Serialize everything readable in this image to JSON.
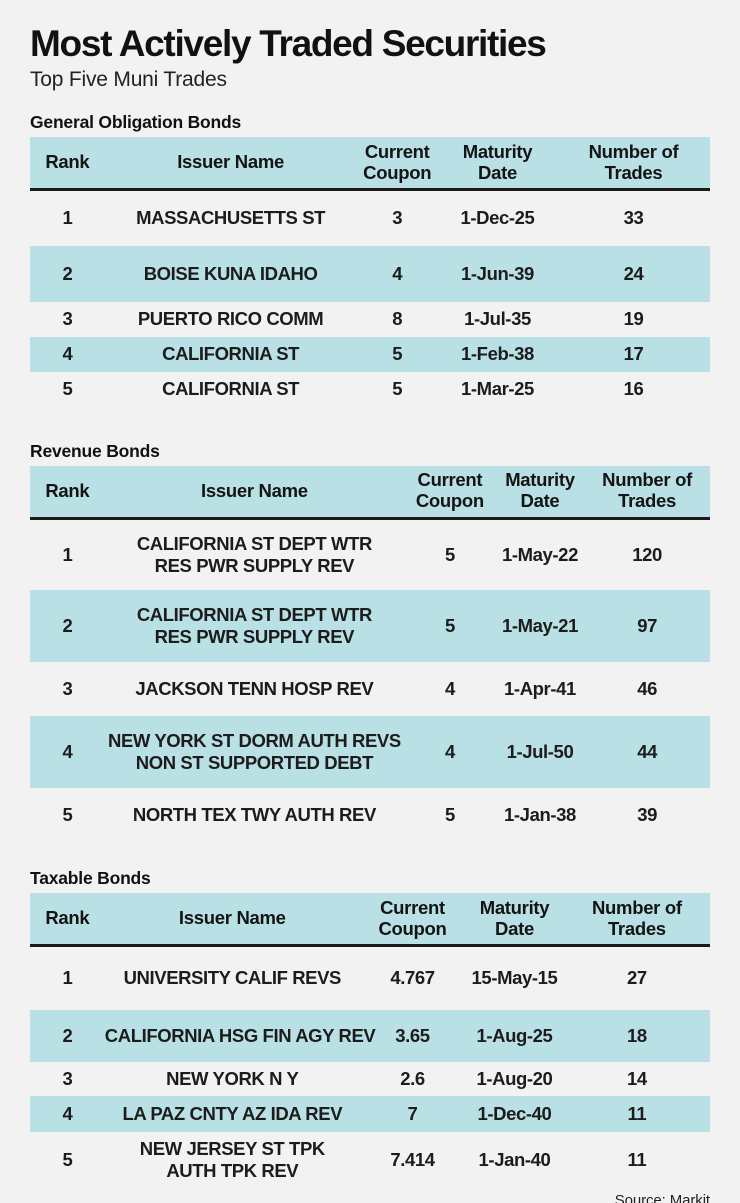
{
  "title": "Most Actively Traded Securities",
  "subtitle": "Top Five Muni Trades",
  "source": "Source: Markit",
  "colors": {
    "row_highlight": "#b8e0e5",
    "background": "#f2f2f3",
    "header_rule": "#1a1a1a",
    "text": "#1c1c1c"
  },
  "chart_data": [
    {
      "type": "table",
      "title": "General Obligation Bonds",
      "columns": [
        "Rank",
        "Issuer Name",
        "Current\nCoupon",
        "Maturity\nDate",
        "Number of\nTrades"
      ],
      "rows": [
        [
          "1",
          "MASSACHUSETTS ST",
          "3",
          "1-Dec-25",
          "33"
        ],
        [
          "2",
          "BOISE KUNA IDAHO",
          "4",
          "1-Jun-39",
          "24"
        ],
        [
          "3",
          "PUERTO RICO COMM",
          "8",
          "1-Jul-35",
          "19"
        ],
        [
          "4",
          "CALIFORNIA ST",
          "5",
          "1-Feb-38",
          "17"
        ],
        [
          "5",
          "CALIFORNIA ST",
          "5",
          "1-Mar-25",
          "16"
        ]
      ]
    },
    {
      "type": "table",
      "title": "Revenue Bonds",
      "columns": [
        "Rank",
        "Issuer Name",
        "Current\nCoupon",
        "Maturity\nDate",
        "Number of\nTrades"
      ],
      "rows": [
        [
          "1",
          "CALIFORNIA ST DEPT WTR\nRES PWR SUPPLY REV",
          "5",
          "1-May-22",
          "120"
        ],
        [
          "2",
          "CALIFORNIA ST DEPT WTR\nRES PWR SUPPLY REV",
          "5",
          "1-May-21",
          "97"
        ],
        [
          "3",
          "JACKSON TENN HOSP REV",
          "4",
          "1-Apr-41",
          "46"
        ],
        [
          "4",
          "NEW YORK ST DORM AUTH REVS\nNON ST SUPPORTED DEBT",
          "4",
          "1-Jul-50",
          "44"
        ],
        [
          "5",
          "NORTH TEX TWY AUTH REV",
          "5",
          "1-Jan-38",
          "39"
        ]
      ]
    },
    {
      "type": "table",
      "title": "Taxable Bonds",
      "columns": [
        "Rank",
        "Issuer Name",
        "Current\nCoupon",
        "Maturity\nDate",
        "Number of\nTrades"
      ],
      "rows": [
        [
          "1",
          "UNIVERSITY CALIF REVS",
          "4.767",
          "15-May-15",
          "27"
        ],
        [
          "2",
          "CALIFORNIA HSG FIN AGY REV",
          "3.65",
          "1-Aug-25",
          "18"
        ],
        [
          "3",
          "NEW YORK N Y",
          "2.6",
          "1-Aug-20",
          "14"
        ],
        [
          "4",
          "LA PAZ CNTY AZ IDA REV",
          "7",
          "1-Dec-40",
          "11"
        ],
        [
          "5",
          "NEW JERSEY ST TPK\nAUTH TPK REV",
          "7.414",
          "1-Jan-40",
          "11"
        ]
      ]
    }
  ]
}
